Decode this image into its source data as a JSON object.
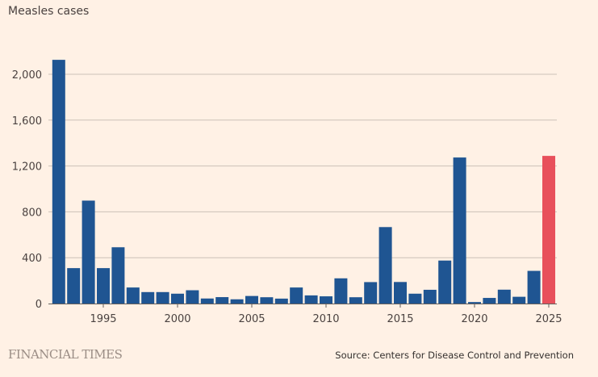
{
  "chart_data": {
    "type": "bar",
    "title": "Measles cases",
    "xlabel": "",
    "ylabel": "",
    "ylim": [
      0,
      2000
    ],
    "yticks": [
      0,
      400,
      800,
      1200,
      1600,
      2000
    ],
    "ytick_labels": [
      "0",
      "400",
      "800",
      "1,200",
      "1,600",
      "2,000"
    ],
    "xticks": [
      1995,
      2000,
      2005,
      2010,
      2015,
      2020,
      2025
    ],
    "xtick_labels": [
      "1995",
      "2000",
      "2005",
      "2010",
      "2015",
      "2020",
      "2025"
    ],
    "grid": true,
    "categories": [
      1992,
      1993,
      1994,
      1995,
      1996,
      1997,
      1998,
      1999,
      2000,
      2001,
      2002,
      2003,
      2004,
      2005,
      2006,
      2007,
      2008,
      2009,
      2010,
      2011,
      2012,
      2013,
      2014,
      2015,
      2016,
      2017,
      2018,
      2019,
      2020,
      2021,
      2022,
      2023,
      2024,
      2025
    ],
    "values": [
      2126,
      309,
      898,
      309,
      491,
      140,
      100,
      100,
      86,
      116,
      44,
      56,
      37,
      66,
      55,
      43,
      140,
      71,
      63,
      220,
      55,
      187,
      667,
      188,
      86,
      120,
      375,
      1274,
      13,
      49,
      121,
      59,
      285,
      1288
    ],
    "colors": {
      "default": "#1f5592",
      "highlight": "#e8505b"
    },
    "highlight_category": 2025
  },
  "footer": {
    "brand": "FINANCIAL TIMES",
    "source": "Source: Centers for Disease Control and Prevention"
  }
}
